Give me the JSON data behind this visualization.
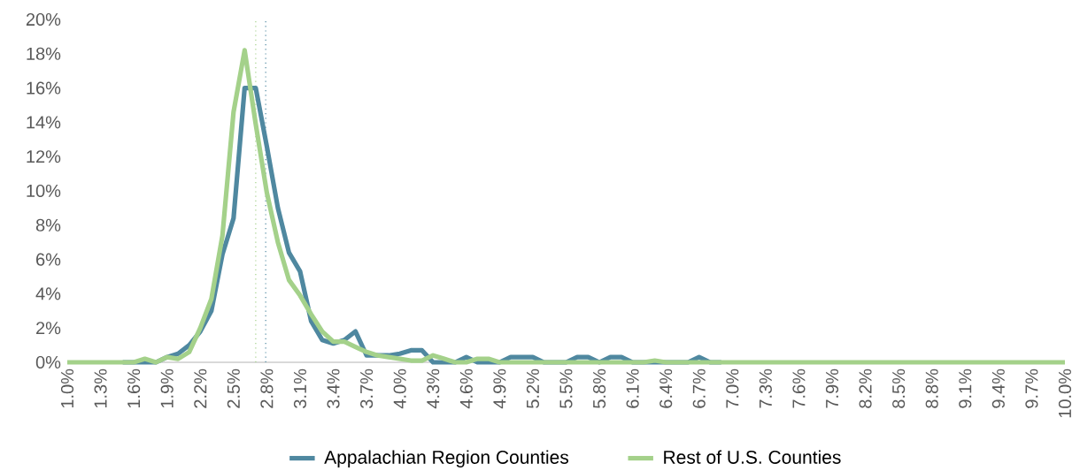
{
  "chart_data": {
    "type": "line",
    "x": [
      1.0,
      1.1,
      1.2,
      1.3,
      1.4,
      1.5,
      1.6,
      1.7,
      1.8,
      1.9,
      2.0,
      2.1,
      2.2,
      2.3,
      2.4,
      2.5,
      2.6,
      2.7,
      2.8,
      2.9,
      3.0,
      3.1,
      3.2,
      3.3,
      3.4,
      3.5,
      3.6,
      3.7,
      3.8,
      3.9,
      4.0,
      4.1,
      4.2,
      4.3,
      4.4,
      4.5,
      4.6,
      4.7,
      4.8,
      4.9,
      5.0,
      5.1,
      5.2,
      5.3,
      5.4,
      5.5,
      5.6,
      5.7,
      5.8,
      5.9,
      6.0,
      6.1,
      6.2,
      6.3,
      6.4,
      6.5,
      6.6,
      6.7,
      6.8,
      6.9,
      7.0,
      7.1,
      7.2,
      7.3,
      7.4,
      7.5,
      7.6,
      7.7,
      7.8,
      7.9,
      8.0,
      8.1,
      8.2,
      8.3,
      8.4,
      8.5,
      8.6,
      8.7,
      8.8,
      8.9,
      9.0,
      9.1,
      9.2,
      9.3,
      9.4,
      9.5,
      9.6,
      9.7,
      9.8,
      9.9,
      10.0
    ],
    "series": [
      {
        "name": "Appalachian Region Counties",
        "color": "#4f88a0",
        "values": [
          null,
          null,
          null,
          null,
          null,
          0,
          0,
          0,
          0,
          0.3,
          0.5,
          1.0,
          1.8,
          3.0,
          6.3,
          8.4,
          16.0,
          16.0,
          12.6,
          9.0,
          6.4,
          5.3,
          2.4,
          1.3,
          1.1,
          1.3,
          1.8,
          0.4,
          0.4,
          0.4,
          0.5,
          0.7,
          0.7,
          0,
          0,
          0,
          0.3,
          0,
          0,
          0,
          0.3,
          0.3,
          0.3,
          0,
          0,
          0,
          0.3,
          0.3,
          0,
          0.3,
          0.3,
          0,
          0,
          0,
          0,
          0,
          0,
          0.3,
          0,
          0,
          null,
          null,
          null,
          null,
          null,
          null,
          null,
          null,
          null,
          null,
          null,
          null,
          null,
          null,
          null,
          null,
          null,
          null,
          null,
          null,
          null,
          null,
          null,
          null,
          null,
          null,
          null,
          null,
          null,
          null,
          null
        ]
      },
      {
        "name": "Rest of U.S. Counties",
        "color": "#a4d18a",
        "values": [
          0,
          0,
          0,
          0,
          0,
          0,
          0,
          0.2,
          0,
          0.3,
          0.2,
          0.6,
          2.0,
          3.7,
          7.4,
          14.6,
          18.2,
          13.9,
          9.9,
          7.0,
          4.8,
          3.9,
          2.8,
          1.8,
          1.2,
          1.2,
          0.9,
          0.6,
          0.4,
          0.3,
          0.2,
          0.1,
          0.1,
          0.4,
          0.2,
          0,
          0,
          0.2,
          0.2,
          0,
          0,
          0,
          0,
          0,
          0,
          0,
          0,
          0,
          0,
          0,
          0,
          0,
          0,
          0.1,
          0,
          0,
          0,
          0,
          0,
          0,
          0,
          0,
          0,
          0,
          0,
          0,
          0,
          0,
          0,
          0,
          0,
          0,
          0,
          0,
          0,
          0,
          0,
          0,
          0,
          0,
          0,
          0,
          0,
          0,
          0,
          0,
          0,
          0,
          0,
          0,
          0
        ]
      }
    ],
    "xlim": [
      1.0,
      10.0
    ],
    "xticks": [
      {
        "value": 1.0,
        "label": "1.0%"
      },
      {
        "value": 1.3,
        "label": "1.3%"
      },
      {
        "value": 1.6,
        "label": "1.6%"
      },
      {
        "value": 1.9,
        "label": "1.9%"
      },
      {
        "value": 2.2,
        "label": "2.2%"
      },
      {
        "value": 2.5,
        "label": "2.5%"
      },
      {
        "value": 2.8,
        "label": "2.8%"
      },
      {
        "value": 3.1,
        "label": "3.1%"
      },
      {
        "value": 3.4,
        "label": "3.4%"
      },
      {
        "value": 3.7,
        "label": "3.7%"
      },
      {
        "value": 4.0,
        "label": "4.0%"
      },
      {
        "value": 4.3,
        "label": "4.3%"
      },
      {
        "value": 4.6,
        "label": "4.6%"
      },
      {
        "value": 4.9,
        "label": "4.9%"
      },
      {
        "value": 5.2,
        "label": "5.2%"
      },
      {
        "value": 5.5,
        "label": "5.5%"
      },
      {
        "value": 5.8,
        "label": "5.8%"
      },
      {
        "value": 6.1,
        "label": "6.1%"
      },
      {
        "value": 6.4,
        "label": "6.4%"
      },
      {
        "value": 6.7,
        "label": "6.7%"
      },
      {
        "value": 7.0,
        "label": "7.0%"
      },
      {
        "value": 7.3,
        "label": "7.3%"
      },
      {
        "value": 7.6,
        "label": "7.6%"
      },
      {
        "value": 7.9,
        "label": "7.9%"
      },
      {
        "value": 8.2,
        "label": "8.2%"
      },
      {
        "value": 8.5,
        "label": "8.5%"
      },
      {
        "value": 8.8,
        "label": "8.8%"
      },
      {
        "value": 9.1,
        "label": "9.1%"
      },
      {
        "value": 9.4,
        "label": "9.4%"
      },
      {
        "value": 9.7,
        "label": "9.7%"
      },
      {
        "value": 10.0,
        "label": "10.0%"
      }
    ],
    "ylim": [
      0,
      20
    ],
    "yticks": [
      {
        "value": 0,
        "label": "0%"
      },
      {
        "value": 2,
        "label": "2%"
      },
      {
        "value": 4,
        "label": "4%"
      },
      {
        "value": 6,
        "label": "6%"
      },
      {
        "value": 8,
        "label": "8%"
      },
      {
        "value": 10,
        "label": "10%"
      },
      {
        "value": 12,
        "label": "12%"
      },
      {
        "value": 14,
        "label": "14%"
      },
      {
        "value": 16,
        "label": "16%"
      },
      {
        "value": 18,
        "label": "18%"
      },
      {
        "value": 20,
        "label": "20%"
      }
    ],
    "ref_lines": [
      {
        "axis": "x",
        "value": 2.7,
        "color": "#a4d18a",
        "line_style": "dotted"
      },
      {
        "axis": "x",
        "value": 2.79,
        "color": "#4f88a0",
        "line_style": "dotted"
      }
    ],
    "grid": false,
    "legend": "bottom",
    "marker": "none",
    "line_style": "solid"
  }
}
